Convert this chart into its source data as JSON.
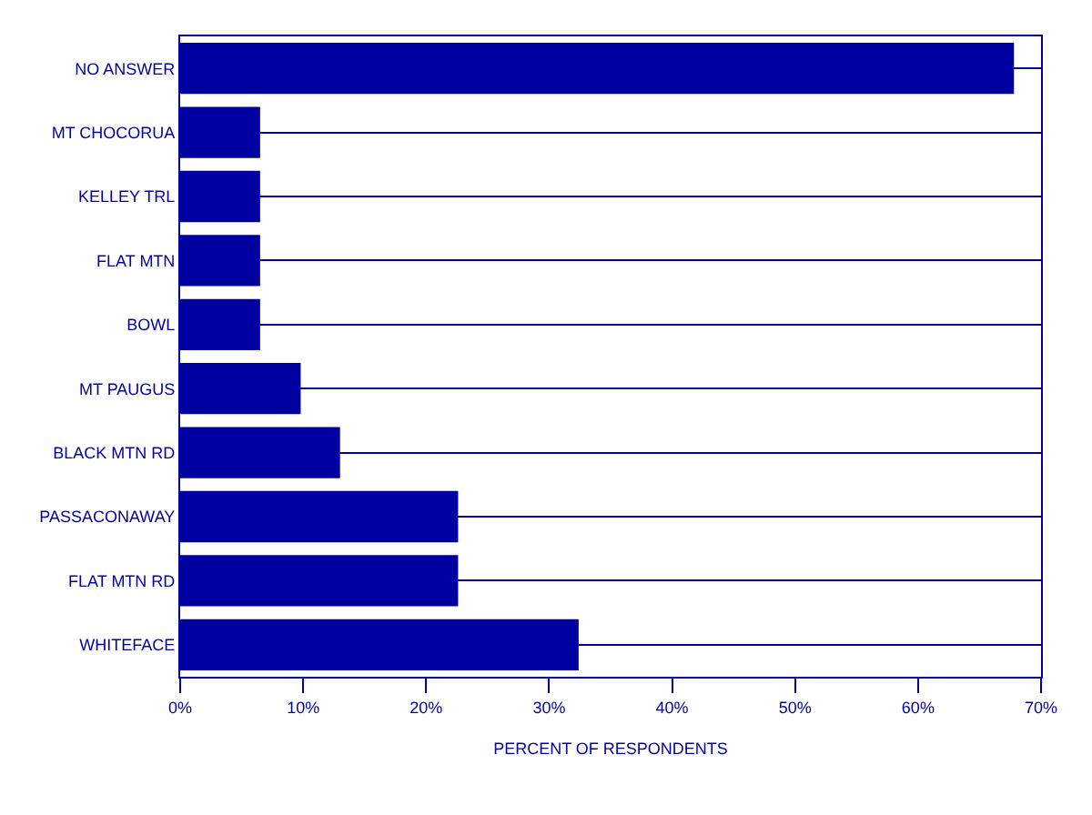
{
  "chart_data": {
    "type": "bar",
    "orientation": "horizontal",
    "categories": [
      "NO ANSWER",
      "MT CHOCORUA",
      "KELLEY TRL",
      "FLAT MTN",
      "BOWL",
      "MT PAUGUS",
      "BLACK MTN RD",
      "PASSACONAWAY",
      "FLAT MTN RD",
      "WHITEFACE"
    ],
    "values": [
      67.8,
      6.5,
      6.5,
      6.5,
      6.5,
      9.8,
      13.0,
      22.6,
      22.6,
      32.4
    ],
    "color": "#0000a0",
    "xlabel": "PERCENT OF RESPONDENTS",
    "xlim": [
      0,
      70
    ],
    "xticks": [
      {
        "value": 0,
        "label": "0%"
      },
      {
        "value": 10,
        "label": "10%"
      },
      {
        "value": 20,
        "label": "20%"
      },
      {
        "value": 30,
        "label": "30%"
      },
      {
        "value": 40,
        "label": "40%"
      },
      {
        "value": 50,
        "label": "50%"
      },
      {
        "value": 60,
        "label": "60%"
      },
      {
        "value": 70,
        "label": "70%"
      }
    ],
    "grid": "y"
  }
}
